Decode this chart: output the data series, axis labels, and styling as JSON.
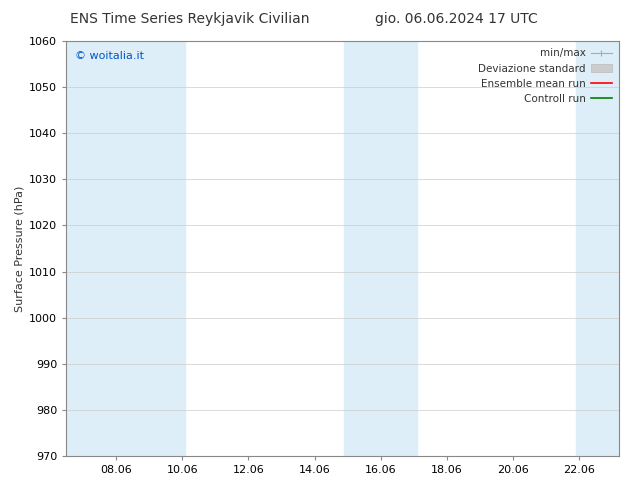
{
  "title_left": "ENS Time Series Reykjavik Civilian",
  "title_right": "gio. 06.06.2024 17 UTC",
  "ylabel": "Surface Pressure (hPa)",
  "ylim": [
    970,
    1060
  ],
  "yticks": [
    970,
    980,
    990,
    1000,
    1010,
    1020,
    1030,
    1040,
    1050,
    1060
  ],
  "xtick_positions": [
    8,
    10,
    12,
    14,
    16,
    18,
    20,
    22
  ],
  "xtick_labels": [
    "08.06",
    "10.06",
    "12.06",
    "14.06",
    "16.06",
    "18.06",
    "20.06",
    "22.06"
  ],
  "xlim": [
    6.5,
    23.2
  ],
  "watermark": "© woitalia.it",
  "watermark_color": "#0055cc",
  "background_color": "#ffffff",
  "band_color": "#ddeef8",
  "shade_bands": [
    {
      "start": 6.5,
      "end": 10.1
    },
    {
      "start": 14.9,
      "end": 17.1
    },
    {
      "start": 21.9,
      "end": 23.2
    }
  ],
  "title_fontsize": 10,
  "axis_fontsize": 8,
  "tick_fontsize": 8,
  "legend_fontsize": 7.5,
  "minmax_color": "#aaaaaa",
  "std_color": "#cccccc",
  "ensemble_color": "#ff0000",
  "control_color": "#008000"
}
